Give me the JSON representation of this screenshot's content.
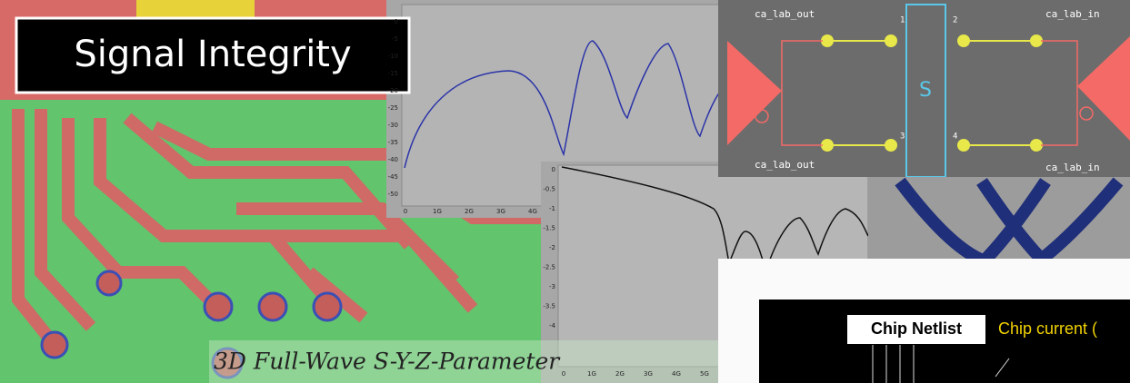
{
  "title": "Signal Integrity",
  "caption": "3D Full-Wave S-Y-Z-Parameter",
  "plot1": {
    "yticks": [
      "0",
      "-5",
      "-10",
      "-15",
      "-20",
      "-25",
      "-30",
      "-35",
      "-40",
      "-45",
      "-50"
    ],
    "xticks": [
      "0",
      "1G",
      "2G",
      "3G",
      "4G"
    ]
  },
  "plot2": {
    "yticks": [
      "0",
      "-0.5",
      "-1",
      "-1.5",
      "-2",
      "-2.5",
      "-3",
      "-3.5",
      "-4"
    ],
    "xticks": [
      "0",
      "1G",
      "2G",
      "3G",
      "4G",
      "5G"
    ]
  },
  "schematic": {
    "left_top": "ca_lab_out",
    "left_bottom": "ca_lab_out",
    "right_top": "ca_lab_in",
    "right_bottom": "ca_lab_in",
    "block": "S",
    "pins": [
      "1",
      "2",
      "3",
      "4"
    ]
  },
  "netlist": {
    "label": "Chip Netlist",
    "current": "Chip current ("
  }
}
